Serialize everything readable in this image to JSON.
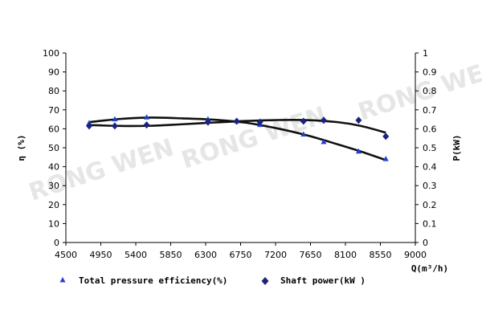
{
  "chart_data": {
    "type": "line",
    "watermark": "RONG WEN",
    "xlabel": "Q(m³/h)",
    "ylabel_left": "η (%)",
    "ylabel_right": "P(kW)",
    "xlim": [
      4500,
      9000
    ],
    "xticks": [
      4500,
      4950,
      5400,
      5850,
      6300,
      6750,
      7200,
      7650,
      8100,
      8550,
      9000
    ],
    "ylim_left": [
      0,
      100
    ],
    "yticks_left": [
      0,
      10,
      20,
      30,
      40,
      50,
      60,
      70,
      80,
      90,
      100
    ],
    "ylim_right": [
      0,
      1
    ],
    "yticks_right": [
      "0",
      "0.1",
      "0.2",
      "0.3",
      "0.4",
      "0.5",
      "0.6",
      "0.7",
      "0.8",
      "0.9",
      "1"
    ],
    "grid": false,
    "legend_position": "bottom",
    "series": [
      {
        "name": "Total pressure efficiency(%)",
        "axis": "left",
        "marker": "triangle",
        "color": "#1f3fd6",
        "x": [
          4800,
          5130,
          5540,
          6330,
          6700,
          7000,
          7560,
          7820,
          8270,
          8620
        ],
        "y": [
          63,
          65,
          66,
          65,
          64,
          62,
          57,
          53,
          48,
          44
        ],
        "trend_x": [
          4800,
          5200,
          5600,
          6000,
          6400,
          6800,
          7200,
          7600,
          8000,
          8300,
          8620
        ],
        "trend_y": [
          63.5,
          65.2,
          65.9,
          65.5,
          64.8,
          63.3,
          60.4,
          56.6,
          51.8,
          48.0,
          43.5
        ]
      },
      {
        "name": "Shaft power(kW )",
        "axis": "right",
        "marker": "diamond",
        "color": "#1a237e",
        "x": [
          4800,
          5130,
          5540,
          6330,
          6700,
          7000,
          7560,
          7820,
          8270,
          8620
        ],
        "y": [
          0.615,
          0.615,
          0.62,
          0.635,
          0.64,
          0.635,
          0.64,
          0.645,
          0.645,
          0.56
        ],
        "trend_x": [
          4800,
          5200,
          5600,
          6000,
          6400,
          6800,
          7200,
          7600,
          8000,
          8300,
          8620
        ],
        "trend_y": [
          0.62,
          0.615,
          0.616,
          0.624,
          0.633,
          0.641,
          0.646,
          0.646,
          0.635,
          0.615,
          0.58
        ]
      }
    ]
  }
}
